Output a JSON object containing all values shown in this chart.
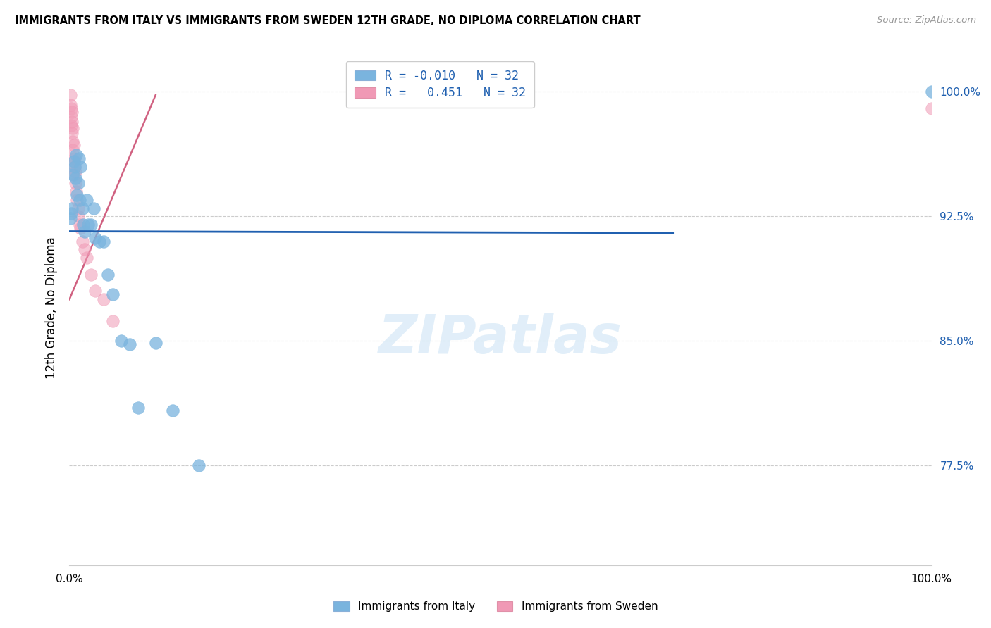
{
  "title": "IMMIGRANTS FROM ITALY VS IMMIGRANTS FROM SWEDEN 12TH GRADE, NO DIPLOMA CORRELATION CHART",
  "source": "Source: ZipAtlas.com",
  "ylabel": "12th Grade, No Diploma",
  "ytick_labels": [
    "77.5%",
    "85.0%",
    "92.5%",
    "100.0%"
  ],
  "ytick_values": [
    0.775,
    0.85,
    0.925,
    1.0
  ],
  "xlim": [
    0.0,
    1.0
  ],
  "ylim": [
    0.715,
    1.025
  ],
  "legend_label_italy": "Immigrants from Italy",
  "legend_label_sweden": "Immigrants from Sweden",
  "r_italy": "-0.010",
  "r_sweden": " 0.451",
  "n_italy": "32",
  "n_sweden": "32",
  "watermark": "ZIPatlas",
  "blue_scatter_color": "#7ab4de",
  "pink_scatter_color": "#f099b5",
  "blue_line_color": "#2060b0",
  "pink_line_color": "#d06080",
  "grid_color": "#cccccc",
  "axis_label_color": "#2060b0",
  "italy_x": [
    0.001,
    0.002,
    0.003,
    0.004,
    0.005,
    0.006,
    0.007,
    0.008,
    0.009,
    0.01,
    0.011,
    0.012,
    0.013,
    0.015,
    0.016,
    0.018,
    0.02,
    0.022,
    0.025,
    0.028,
    0.03,
    0.035,
    0.04,
    0.045,
    0.05,
    0.06,
    0.07,
    0.08,
    0.1,
    0.12,
    0.15,
    1.0
  ],
  "italy_y": [
    0.924,
    0.927,
    0.93,
    0.95,
    0.958,
    0.955,
    0.948,
    0.962,
    0.938,
    0.945,
    0.96,
    0.935,
    0.955,
    0.93,
    0.92,
    0.916,
    0.935,
    0.92,
    0.92,
    0.93,
    0.912,
    0.91,
    0.91,
    0.89,
    0.878,
    0.85,
    0.848,
    0.81,
    0.849,
    0.808,
    0.775,
    1.0
  ],
  "sweden_x": [
    0.001,
    0.001,
    0.002,
    0.002,
    0.002,
    0.003,
    0.003,
    0.003,
    0.004,
    0.004,
    0.004,
    0.005,
    0.005,
    0.005,
    0.006,
    0.006,
    0.007,
    0.007,
    0.008,
    0.009,
    0.01,
    0.01,
    0.012,
    0.013,
    0.015,
    0.018,
    0.02,
    0.025,
    0.03,
    0.04,
    0.05,
    1.0
  ],
  "sweden_y": [
    0.998,
    0.992,
    0.99,
    0.985,
    0.98,
    0.988,
    0.975,
    0.982,
    0.97,
    0.965,
    0.978,
    0.968,
    0.958,
    0.95,
    0.96,
    0.955,
    0.945,
    0.952,
    0.94,
    0.935,
    0.93,
    0.925,
    0.92,
    0.918,
    0.91,
    0.905,
    0.9,
    0.89,
    0.88,
    0.875,
    0.862,
    0.99
  ],
  "italy_line_x": [
    0.0,
    0.7
  ],
  "italy_line_y": [
    0.916,
    0.915
  ],
  "sweden_line_x": [
    0.0,
    0.1
  ],
  "sweden_line_y": [
    0.875,
    0.998
  ]
}
